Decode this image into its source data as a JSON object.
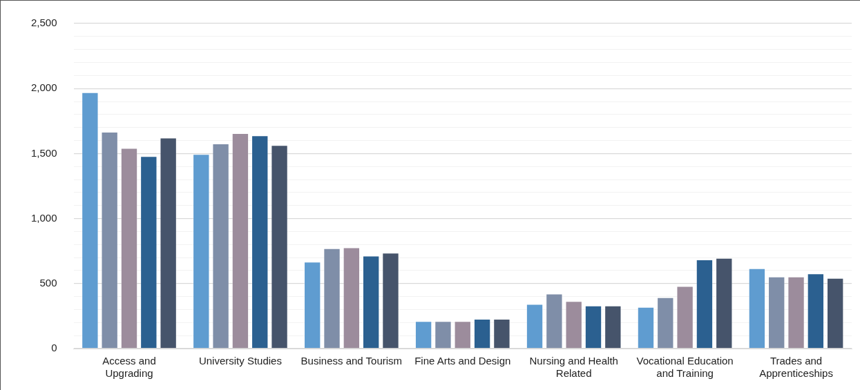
{
  "chart_data": {
    "type": "bar",
    "categories": [
      "Access and Upgrading",
      "University Studies",
      "Business and Tourism",
      "Fine Arts and Design",
      "Nursing and Health Related",
      "Vocational Education and Training",
      "Trades and Apprenticeships"
    ],
    "series": [
      {
        "color": "#5f9cd0",
        "values": [
          1970,
          1496,
          668,
          211,
          343,
          320,
          617
        ]
      },
      {
        "color": "#7f8ea8",
        "values": [
          1667,
          1576,
          771,
          211,
          422,
          394,
          554
        ]
      },
      {
        "color": "#9c8c9c",
        "values": [
          1542,
          1656,
          777,
          211,
          365,
          480,
          554
        ]
      },
      {
        "color": "#2b6090",
        "values": [
          1479,
          1639,
          714,
          228,
          331,
          685,
          577
        ]
      },
      {
        "color": "#46546b",
        "values": [
          1622,
          1565,
          737,
          228,
          331,
          697,
          543
        ]
      }
    ],
    "ylim": [
      0,
      2500
    ],
    "yticks": [
      0,
      {
        "value": 100,
        "label": null
      },
      {
        "value": 200,
        "label": null
      },
      {
        "value": 300,
        "label": null
      },
      {
        "value": 400,
        "label": null
      },
      {
        "value": 500,
        "label": "500"
      },
      {
        "value": 600,
        "label": null
      },
      {
        "value": 700,
        "label": null
      },
      {
        "value": 800,
        "label": null
      },
      {
        "value": 900,
        "label": null
      },
      {
        "value": 1000,
        "label": "1,000"
      },
      {
        "value": 1100,
        "label": null
      },
      {
        "value": 1200,
        "label": null
      },
      {
        "value": 1300,
        "label": null
      },
      {
        "value": 1400,
        "label": null
      },
      {
        "value": 1500,
        "label": "1,500"
      },
      {
        "value": 1600,
        "label": null
      },
      {
        "value": 1700,
        "label": null
      },
      {
        "value": 1800,
        "label": null
      },
      {
        "value": 1900,
        "label": null
      },
      {
        "value": 2000,
        "label": "2,000"
      },
      {
        "value": 2100,
        "label": null
      },
      {
        "value": 2200,
        "label": null
      },
      {
        "value": 2300,
        "label": null
      },
      {
        "value": 2400,
        "label": null
      },
      {
        "value": 2500,
        "label": "2,500"
      }
    ],
    "grid": "y",
    "legend": false
  }
}
